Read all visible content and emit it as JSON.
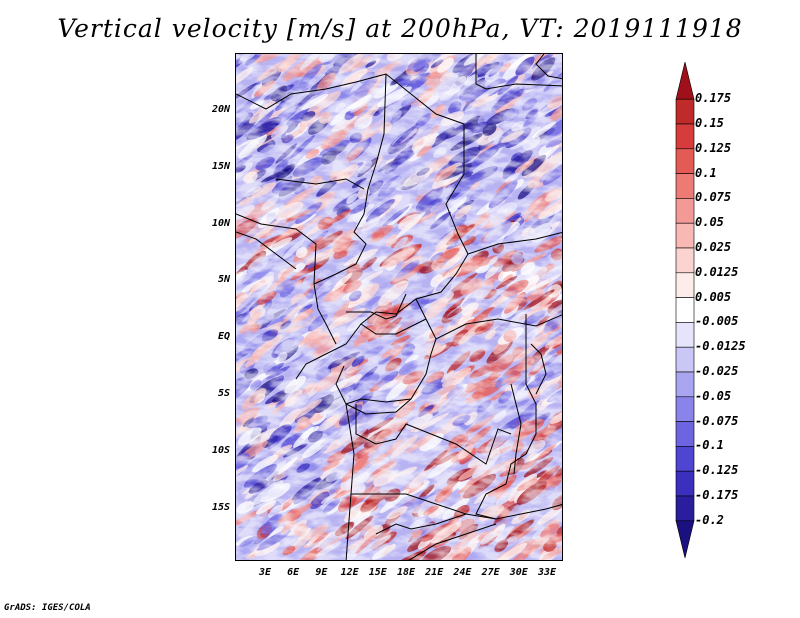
{
  "title": "Vertical velocity [m/s] at 200hPa, VT: 2019111918",
  "credit": "GrADS: IGES/COLA",
  "lat_labels": [
    "20N",
    "15N",
    "10N",
    "5N",
    "EQ",
    "5S",
    "10S",
    "15S"
  ],
  "lon_labels": [
    "3E",
    "6E",
    "9E",
    "12E",
    "15E",
    "18E",
    "21E",
    "24E",
    "27E",
    "30E",
    "33E"
  ],
  "colorbar": {
    "labels": [
      "0.175",
      "0.15",
      "0.125",
      "0.1",
      "0.075",
      "0.05",
      "0.025",
      "0.0125",
      "0.005",
      "-0.005",
      "-0.0125",
      "-0.025",
      "-0.05",
      "-0.075",
      "-0.1",
      "-0.125",
      "-0.175",
      "-0.2"
    ],
    "colors": [
      "#a0101a",
      "#c02a2a",
      "#d63c3c",
      "#e45a55",
      "#ee7a75",
      "#f49a96",
      "#f8b8b4",
      "#fbd4d0",
      "#fdecea",
      "#ffffff",
      "#e6e4fb",
      "#cac7f7",
      "#aaa5f1",
      "#8a84ea",
      "#6c64e0",
      "#4e45d2",
      "#3a2fbf",
      "#2a1e9e",
      "#1a1080"
    ]
  },
  "chart_data": {
    "type": "heatmap",
    "title": "Vertical velocity [m/s] at 200hPa, VT: 2019111918",
    "variable": "Vertical velocity",
    "units": "m/s",
    "level": "200hPa",
    "valid_time": "2019111918",
    "x_range_deg": [
      0,
      35
    ],
    "y_range_deg": [
      -20,
      24
    ],
    "x_ticks": [
      "3E",
      "6E",
      "9E",
      "12E",
      "15E",
      "18E",
      "21E",
      "24E",
      "27E",
      "30E",
      "33E"
    ],
    "y_ticks": [
      "20N",
      "15N",
      "10N",
      "5N",
      "EQ",
      "5S",
      "10S",
      "15S"
    ],
    "color_levels": [
      -0.2,
      -0.175,
      -0.125,
      -0.1,
      -0.075,
      -0.05,
      -0.025,
      -0.0125,
      -0.005,
      0.005,
      0.0125,
      0.025,
      0.05,
      0.075,
      0.1,
      0.125,
      0.15,
      0.175
    ]
  }
}
